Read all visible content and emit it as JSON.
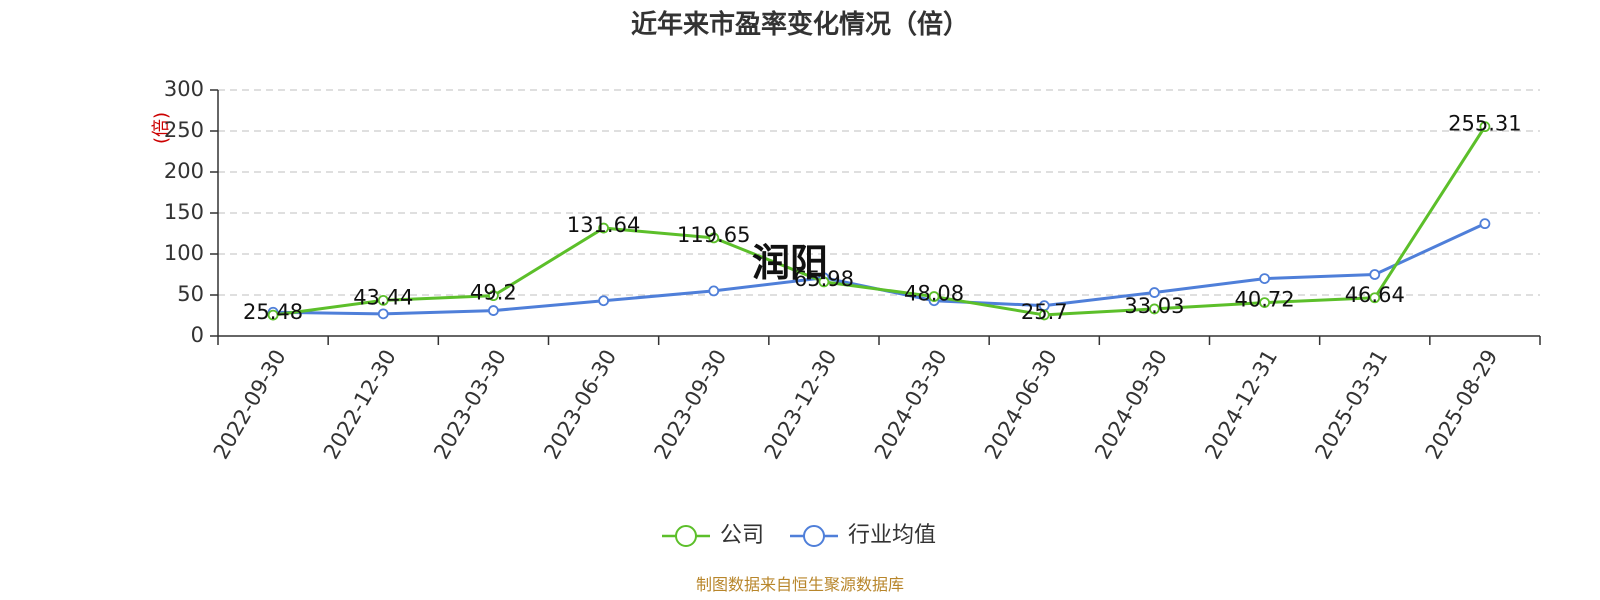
{
  "chart_data": {
    "type": "line",
    "title": "近年来市盈率变化情况（倍）",
    "ylabel": "(倍)",
    "ylim": [
      0,
      300
    ],
    "yticks": [
      0,
      50,
      100,
      150,
      200,
      250,
      300
    ],
    "grid": true,
    "legend_position": "bottom",
    "categories": [
      "2022-09-30",
      "2022-12-30",
      "2023-03-30",
      "2023-06-30",
      "2023-09-30",
      "2023-12-30",
      "2024-03-30",
      "2024-06-30",
      "2024-09-30",
      "2024-12-31",
      "2025-03-31",
      "2025-08-29"
    ],
    "series": [
      {
        "name": "公司",
        "color": "#5cbf2a",
        "values": [
          25.48,
          43.44,
          49.2,
          131.64,
          119.65,
          65.98,
          48.08,
          25.7,
          33.03,
          40.72,
          46.64,
          255.31
        ],
        "labels": [
          "25.48",
          "43.44",
          "49.2",
          "131.64",
          "119.65",
          "65.98",
          "48.08",
          "25.7",
          "33.03",
          "40.72",
          "46.64",
          "255.31"
        ]
      },
      {
        "name": "行业均值",
        "color": "#4f7fd9",
        "values": [
          29,
          27,
          31,
          43,
          55,
          71,
          43,
          37,
          53,
          70,
          75,
          137
        ]
      }
    ]
  },
  "watermark": "润阳",
  "source": "制图数据来自恒生聚源数据库"
}
